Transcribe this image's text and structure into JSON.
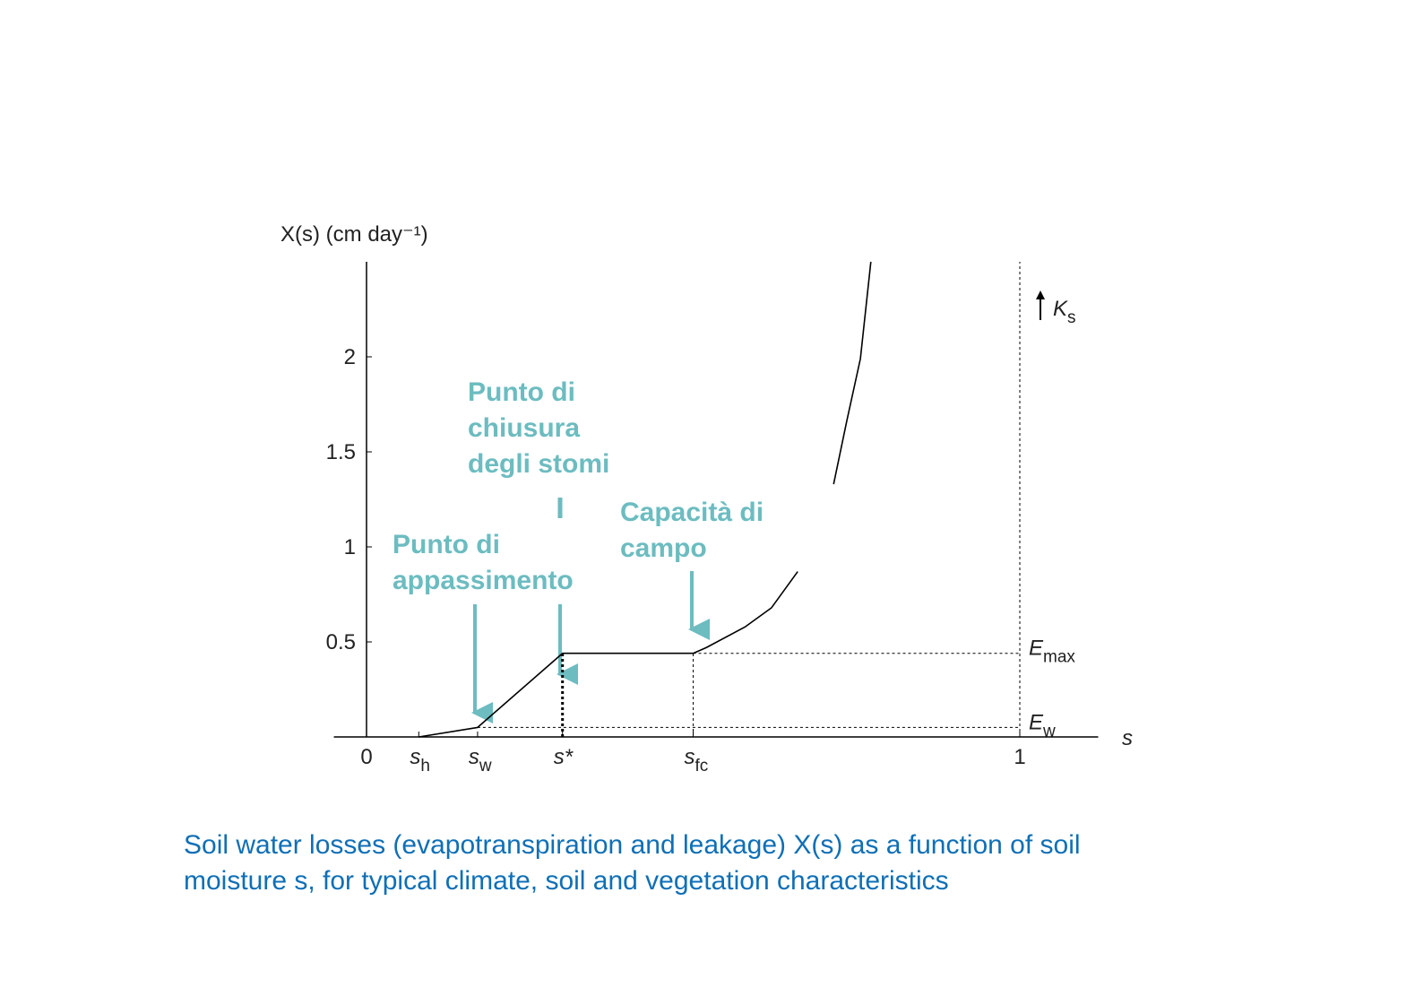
{
  "chart_data": {
    "type": "line",
    "y_label": "X(s) (cm day⁻¹)",
    "x_label": "s",
    "xlim": [
      -0.05,
      1.12
    ],
    "ylim": [
      0,
      2.5
    ],
    "xticks": [
      0,
      {
        "value": 0.08,
        "label": "s",
        "subscript": "h"
      },
      {
        "value": 0.17,
        "label": "s",
        "subscript": "w"
      },
      {
        "value": 0.3,
        "label": "s*"
      },
      {
        "value": 0.5,
        "label": "s",
        "subscript": "fc"
      },
      1
    ],
    "yticks": [
      0.5,
      1,
      1.5,
      2
    ],
    "x": [
      0.08,
      0.17,
      0.3,
      0.5,
      0.52,
      0.58,
      0.62,
      0.66,
      0.69,
      0.715,
      0.735,
      0.756,
      0.772
    ],
    "series": [
      {
        "color": "#000000",
        "values": [
          0,
          0.05,
          0.44,
          0.44,
          0.47,
          0.58,
          0.68,
          0.87,
          null,
          1.33,
          1.66,
          1.99,
          2.5
        ]
      }
    ],
    "reference_lines": [
      {
        "label": "E",
        "subscript": "max",
        "value": 0.44
      },
      {
        "label": "E",
        "subscript": "w",
        "value": 0.05
      }
    ],
    "upper_label": {
      "label": "K",
      "subscript": "s"
    },
    "annotations": [
      [
        "Punto di",
        "chiusura",
        "degli stomi"
      ],
      [
        "Punto di",
        "appassimento"
      ],
      [
        "Capacità di",
        "campo"
      ]
    ]
  },
  "caption": [
    "Soil water losses (evapotranspiration and leakage) X(s) as a function of soil",
    "moisture s, for typical climate, soil and vegetation characteristics"
  ]
}
